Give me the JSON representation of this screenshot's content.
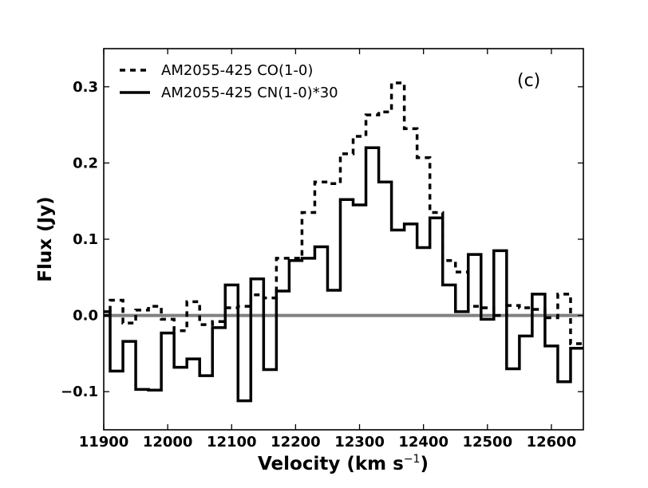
{
  "chart_data": {
    "type": "line",
    "panel_label": "(c)",
    "xlabel": "Velocity (km s",
    "xlabel_sup": "−1",
    "xlabel_close": ")",
    "ylabel": "Flux (Jy)",
    "xlim": [
      11900,
      12650
    ],
    "ylim": [
      -0.15,
      0.35
    ],
    "x_ticks": [
      11900,
      12000,
      12100,
      12200,
      12300,
      12400,
      12500,
      12600
    ],
    "x_tick_labels": [
      "11900",
      "12000",
      "12100",
      "12200",
      "12300",
      "12400",
      "12500",
      "12600"
    ],
    "y_ticks": [
      -0.1,
      0.0,
      0.1,
      0.2,
      0.3
    ],
    "y_tick_labels": [
      "−0.1",
      "0.0",
      "0.1",
      "0.2",
      "0.3"
    ],
    "zero_line_color": "#808080",
    "legend_position": "top-left",
    "series": [
      {
        "name": "AM2055-425 CO(1-0)",
        "style": "dashed",
        "color": "#000000",
        "x": [
          11900,
          11920,
          11940,
          11960,
          11980,
          12000,
          12020,
          12040,
          12060,
          12080,
          12100,
          12120,
          12140,
          12160,
          12180,
          12200,
          12220,
          12240,
          12260,
          12280,
          12300,
          12320,
          12340,
          12360,
          12380,
          12400,
          12420,
          12440,
          12460,
          12480,
          12500,
          12520,
          12540,
          12560,
          12580,
          12600,
          12620,
          12640
        ],
        "y": [
          0.0,
          0.02,
          -0.01,
          0.007,
          0.012,
          -0.005,
          -0.02,
          0.018,
          -0.012,
          -0.008,
          0.01,
          0.012,
          0.027,
          0.023,
          0.075,
          0.075,
          0.135,
          0.175,
          0.173,
          0.212,
          0.235,
          0.263,
          0.267,
          0.305,
          0.245,
          0.207,
          0.135,
          0.072,
          0.057,
          0.012,
          0.01,
          0.0,
          0.013,
          0.01,
          0.008,
          -0.003,
          0.028,
          -0.037
        ]
      },
      {
        "name": "AM2055-425 CN(1-0)*30",
        "style": "solid",
        "color": "#000000",
        "x": [
          11900,
          11920,
          11940,
          11960,
          11980,
          12000,
          12020,
          12040,
          12060,
          12080,
          12100,
          12120,
          12140,
          12160,
          12180,
          12200,
          12220,
          12240,
          12260,
          12280,
          12300,
          12320,
          12340,
          12360,
          12380,
          12400,
          12420,
          12440,
          12460,
          12480,
          12500,
          12520,
          12540,
          12560,
          12580,
          12600,
          12620,
          12640
        ],
        "y": [
          0.005,
          -0.073,
          -0.034,
          -0.097,
          -0.098,
          -0.023,
          -0.068,
          -0.057,
          -0.079,
          -0.016,
          0.04,
          -0.112,
          0.048,
          -0.071,
          0.032,
          0.072,
          0.075,
          0.09,
          0.033,
          0.152,
          0.145,
          0.22,
          0.175,
          0.112,
          0.12,
          0.089,
          0.128,
          0.04,
          0.005,
          0.08,
          -0.005,
          0.085,
          -0.07,
          -0.027,
          0.028,
          -0.04,
          -0.087,
          -0.043
        ]
      }
    ]
  }
}
